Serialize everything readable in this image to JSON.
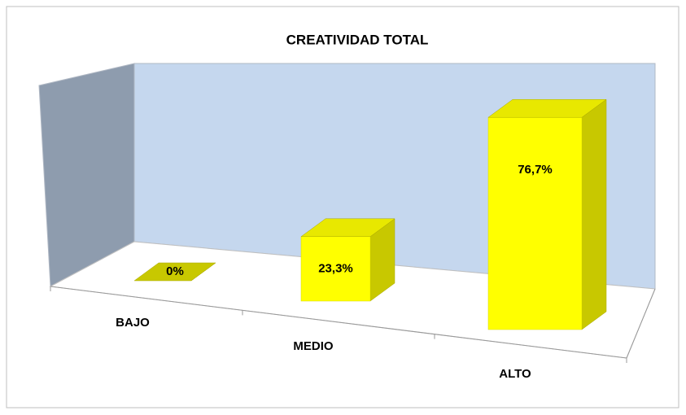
{
  "chart_data": {
    "type": "bar3d",
    "title": "CREATIVIDAD TOTAL",
    "categories": [
      "BAJO",
      "MEDIO",
      "ALTO"
    ],
    "values": [
      0,
      23.3,
      76.7
    ],
    "value_labels": [
      "0%",
      "23,3%",
      "76,7%"
    ],
    "color": "#ffff00"
  }
}
